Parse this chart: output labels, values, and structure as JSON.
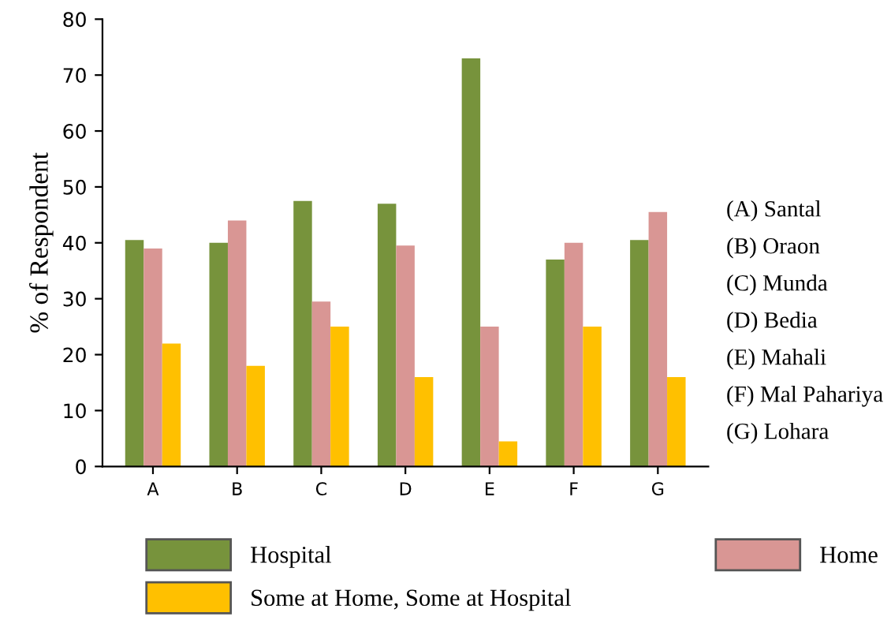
{
  "chart_data": {
    "type": "bar",
    "ylabel": "% of Respondent",
    "categories": [
      "A",
      "B",
      "C",
      "D",
      "E",
      "F",
      "G"
    ],
    "series": [
      {
        "name": "Hospital",
        "color": "#77933c",
        "values": [
          40.5,
          40,
          47.5,
          47,
          73,
          37,
          40.5
        ]
      },
      {
        "name": "Home",
        "color": "#d99694",
        "values": [
          39,
          44,
          29.5,
          39.5,
          25,
          40,
          45.5
        ]
      },
      {
        "name": "Some at Home, Some at Hospital",
        "color": "#ffc000",
        "values": [
          22,
          18,
          25,
          16,
          4.5,
          25,
          16
        ]
      }
    ],
    "ylim": [
      0,
      80
    ],
    "yticks": [
      0,
      10,
      20,
      30,
      40,
      50,
      60,
      70,
      80
    ],
    "grid": false,
    "legend": "bottom",
    "annotations": [
      "(A) Santal",
      "(B) Oraon",
      "(C) Munda",
      "(D) Bedia",
      "(E) Mahali",
      "(F) Mal Pahariya",
      "(G) Lohara"
    ]
  }
}
